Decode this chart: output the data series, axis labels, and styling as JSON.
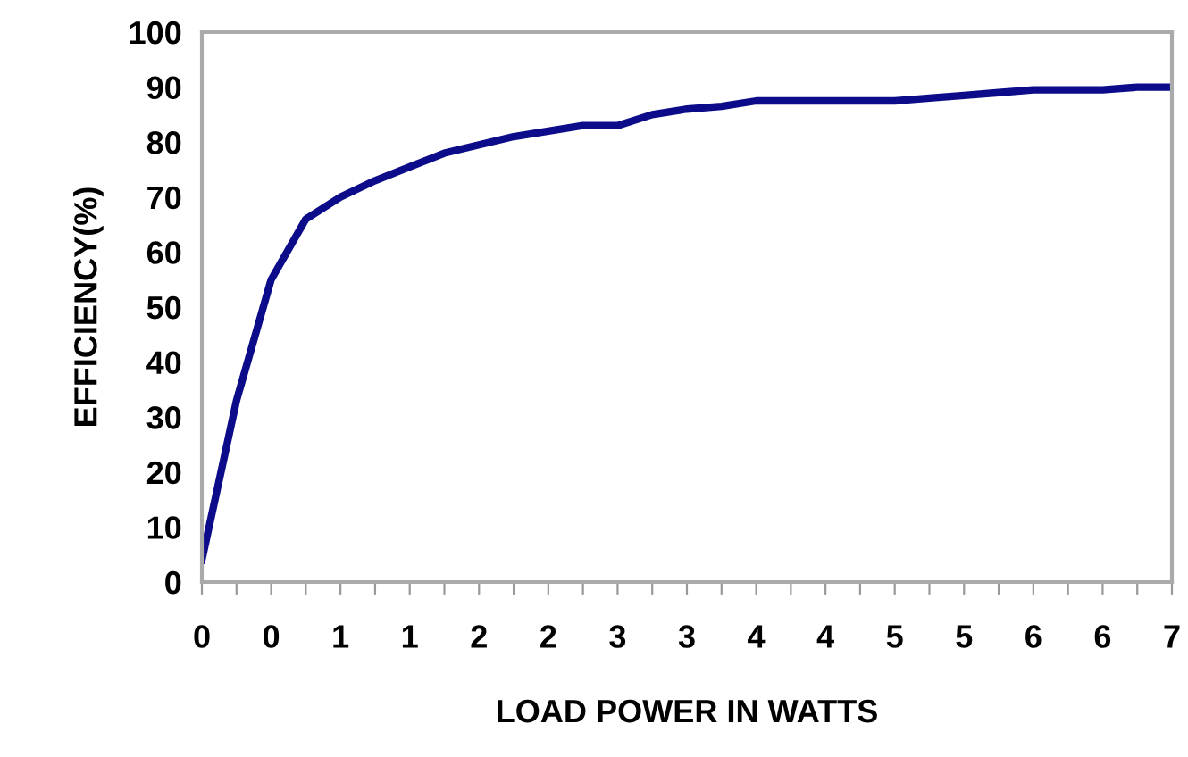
{
  "chart_data": {
    "type": "line",
    "xlabel": "LOAD POWER IN WATTS",
    "ylabel": "EFFICIENCY(%)",
    "categories": [
      "0",
      null,
      "0",
      null,
      "1",
      null,
      "1",
      null,
      "2",
      null,
      "2",
      null,
      "3",
      null,
      "3",
      null,
      "4",
      null,
      "4",
      null,
      "5",
      null,
      "5",
      null,
      "6",
      null,
      "6",
      null,
      "7"
    ],
    "series": [
      {
        "color": "#0c0c8a",
        "values": [
          4,
          33,
          55,
          66,
          70,
          73,
          75.5,
          78,
          79.5,
          81,
          82,
          83,
          83,
          85,
          86,
          86.5,
          87.5,
          87.5,
          87.5,
          87.5,
          87.5,
          88,
          88.5,
          89,
          89.5,
          89.5,
          89.5,
          90,
          90
        ]
      }
    ],
    "ylim": [
      0,
      100
    ],
    "yticks": [
      0,
      10,
      20,
      30,
      40,
      50,
      60,
      70,
      80,
      90,
      100
    ],
    "grid": false,
    "legend": false,
    "marker": "none",
    "line_style": "solid"
  }
}
